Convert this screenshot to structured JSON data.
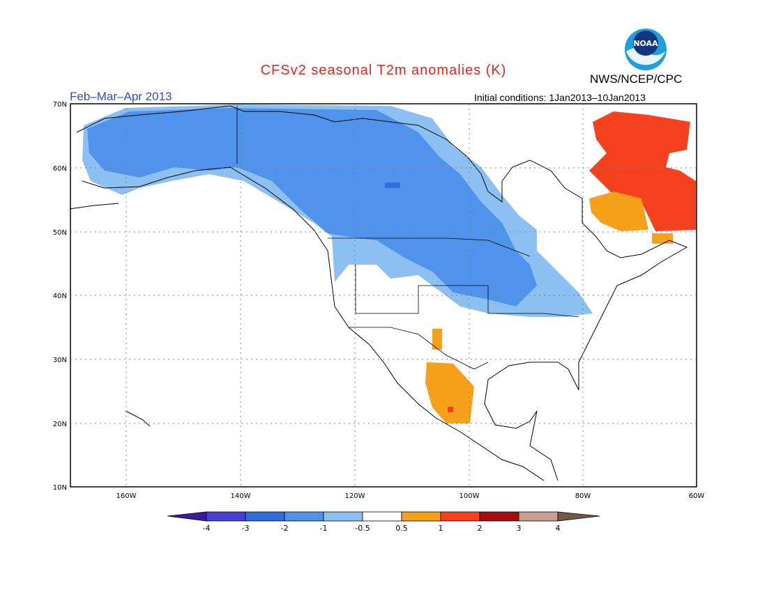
{
  "title": "CFSv2 seasonal T2m anomalies (K)",
  "agency": "NWS/NCEP/CPC",
  "logo_text": "NOAA",
  "period": "Feb–Mar–Apr 2013",
  "initial_conditions": "Initial conditions: 1Jan2013–10Jan2013",
  "lat_ticks": [
    "70N",
    "60N",
    "50N",
    "40N",
    "30N",
    "20N",
    "10N"
  ],
  "lon_ticks": [
    "160W",
    "140W",
    "120W",
    "100W",
    "80W",
    "60W"
  ],
  "colorbar": {
    "labels": [
      "-4",
      "-3",
      "-2",
      "-1",
      "-0.5",
      "0.5",
      "1",
      "2",
      "3",
      "4"
    ],
    "colors": [
      "#3a1a9e",
      "#4b3fd0",
      "#2f6fd8",
      "#4f93ec",
      "#8cc0f3",
      "#ffffff",
      "#f7a11a",
      "#f5411d",
      "#a30f10",
      "#c9a08f",
      "#76584b"
    ]
  },
  "map_extent": {
    "lon_min": -172,
    "lon_max": -60,
    "lat_min": 10,
    "lat_max": 70
  }
}
